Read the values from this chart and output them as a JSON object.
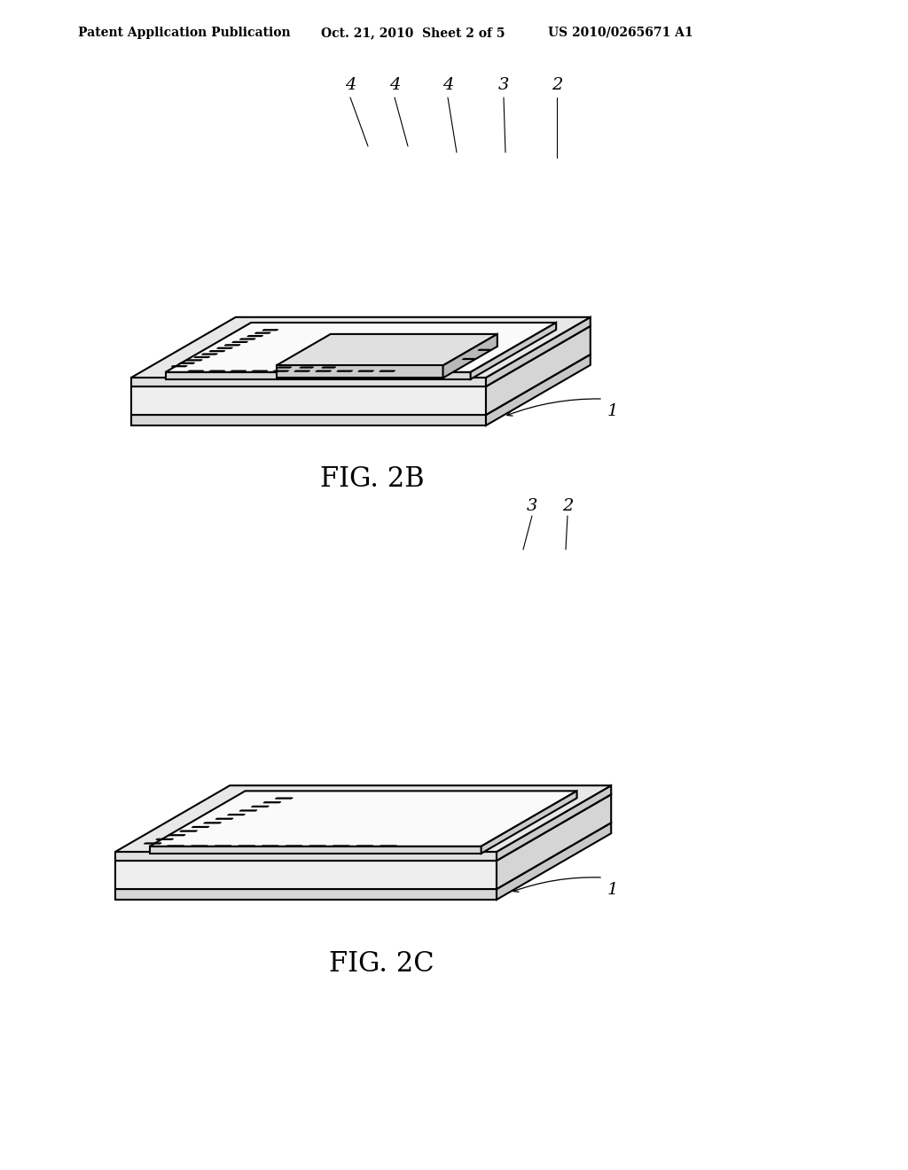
{
  "background_color": "#ffffff",
  "line_color": "#000000",
  "line_width": 1.5,
  "header_text": "Patent Application Publication",
  "header_date": "Oct. 21, 2010  Sheet 2 of 5",
  "header_patent": "US 2010/0265671 A1",
  "fig2b_label": "FIG. 2B",
  "fig2c_label": "FIG. 2C"
}
